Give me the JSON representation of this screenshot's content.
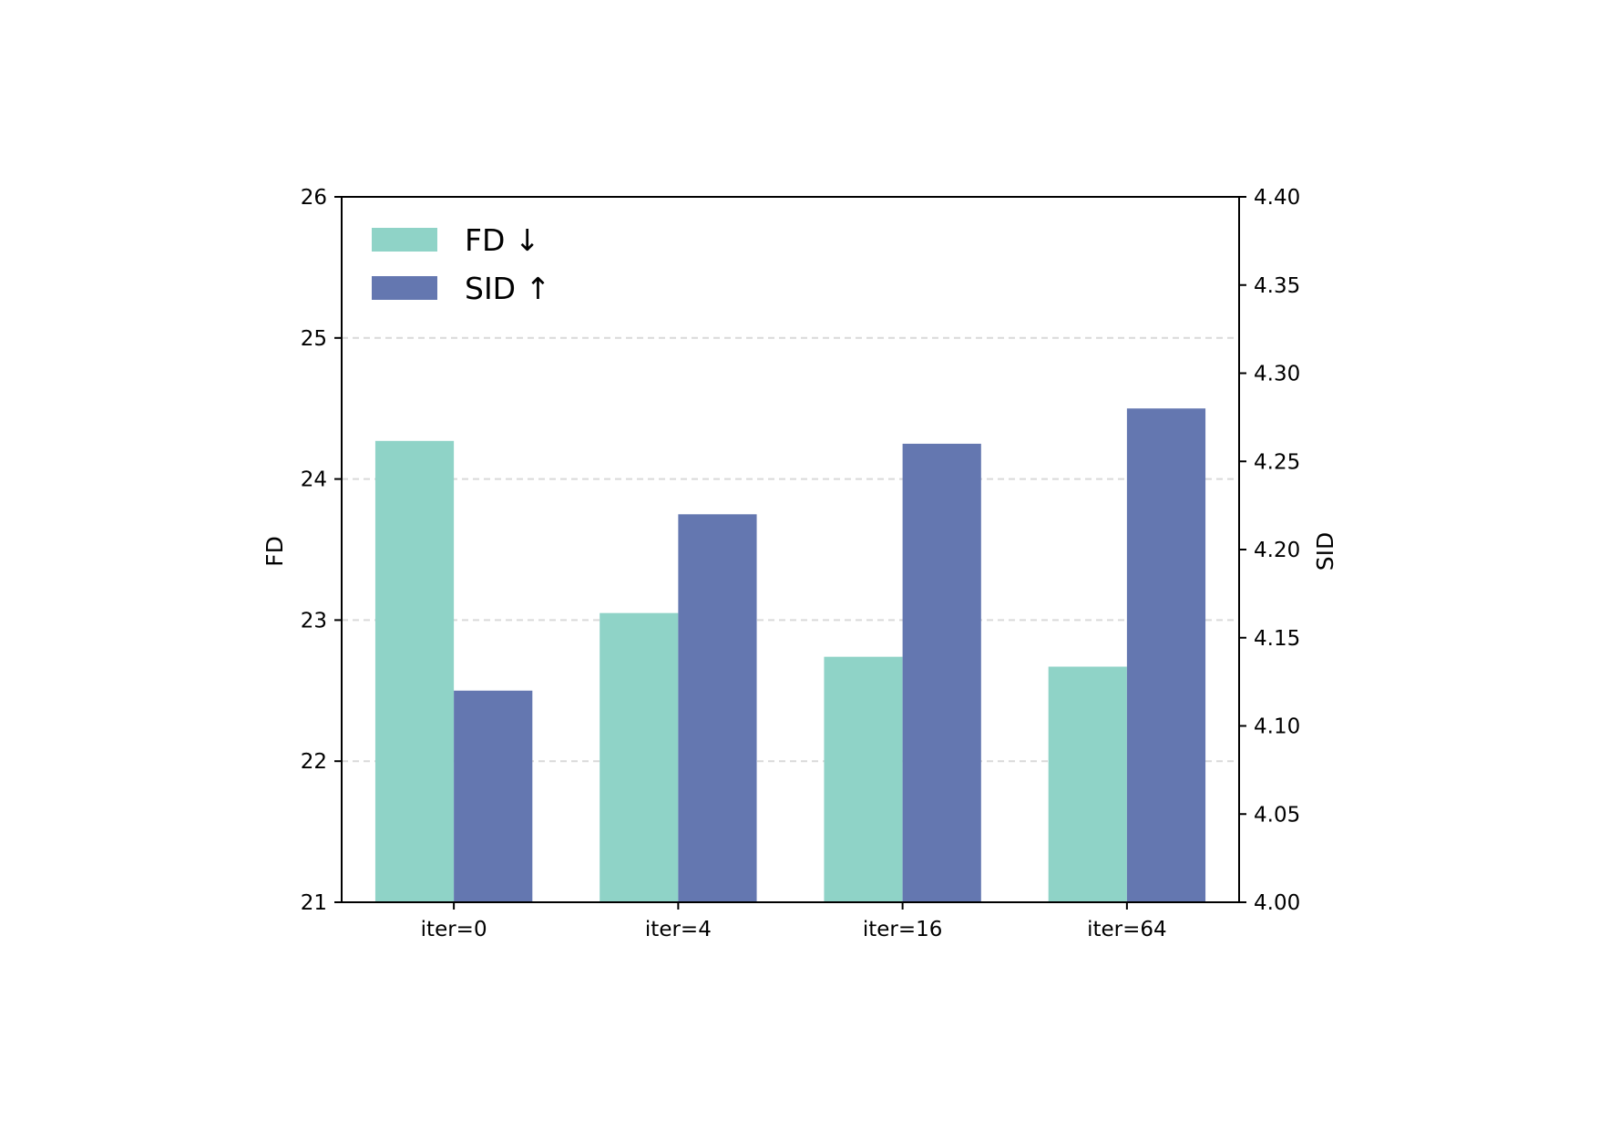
{
  "chart_data": {
    "type": "bar",
    "categories": [
      "iter=0",
      "iter=4",
      "iter=16",
      "iter=64"
    ],
    "series": [
      {
        "name": "FD ↓",
        "axis": "left",
        "color": "#8fd3c7",
        "values": [
          24.27,
          23.05,
          22.74,
          22.67
        ]
      },
      {
        "name": "SID ↑",
        "axis": "right",
        "color": "#6477b0",
        "values": [
          4.12,
          4.22,
          4.26,
          4.28
        ]
      }
    ],
    "ylabel": "FD",
    "ylim": [
      21,
      26
    ],
    "yticks": [
      "21",
      "22",
      "23",
      "24",
      "25",
      "26"
    ],
    "y2label": "SID",
    "y2lim": [
      4.0,
      4.4
    ],
    "y2ticks": [
      "4.00",
      "4.05",
      "4.10",
      "4.15",
      "4.20",
      "4.25",
      "4.30",
      "4.35",
      "4.40"
    ],
    "grid": "horizontal dashed",
    "legend": "top-left"
  }
}
